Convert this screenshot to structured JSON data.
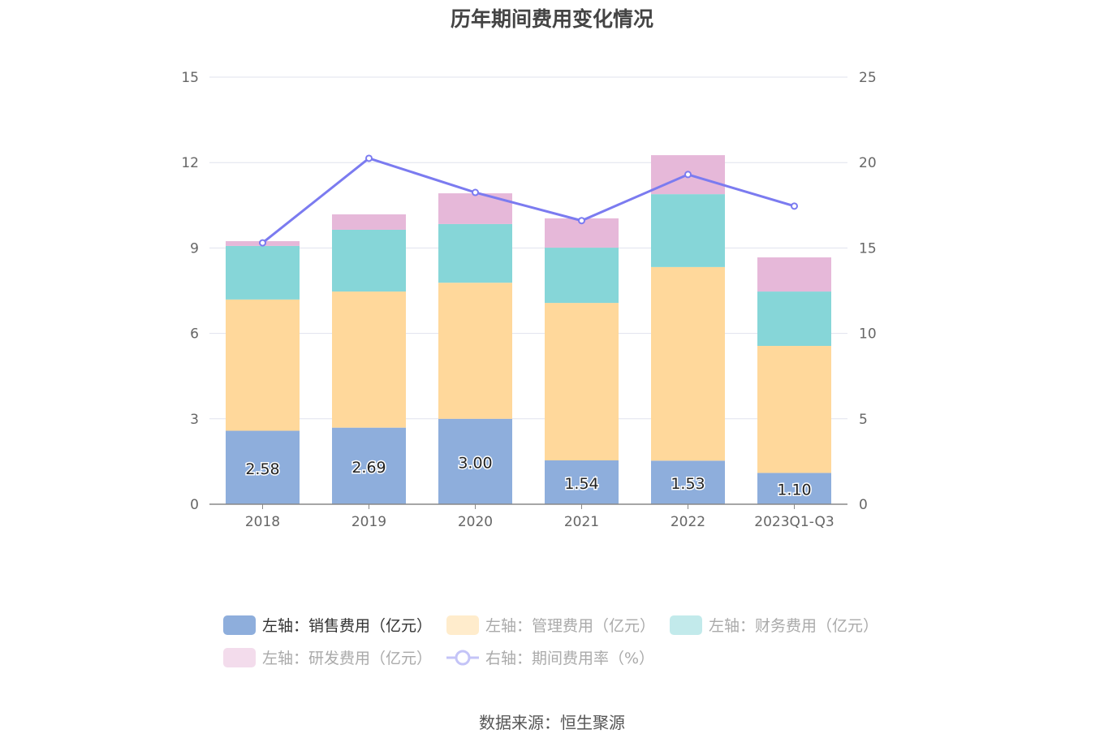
{
  "title": "历年期间费用变化情况",
  "source": "数据来源：恒生聚源",
  "chart_data": {
    "type": "bar",
    "stacked": true,
    "categories": [
      "2018",
      "2019",
      "2020",
      "2021",
      "2022",
      "2023Q1-Q3"
    ],
    "left_axis": {
      "ylim": [
        0,
        15
      ],
      "ticks": [
        0,
        3,
        6,
        9,
        12,
        15
      ]
    },
    "right_axis": {
      "ylim": [
        0,
        25
      ],
      "ticks": [
        0,
        5,
        10,
        15,
        20,
        25
      ]
    },
    "series": [
      {
        "name": "左轴：销售费用（亿元）",
        "axis": "left",
        "color": "#8eaedc",
        "values": [
          2.58,
          2.69,
          3.0,
          1.54,
          1.53,
          1.1
        ],
        "labels": [
          "2.58",
          "2.69",
          "3.00",
          "1.54",
          "1.53",
          "1.10"
        ]
      },
      {
        "name": "左轴：管理费用（亿元）",
        "axis": "left",
        "color": "#ffd89b",
        "values": [
          4.61,
          4.78,
          4.78,
          5.53,
          6.8,
          4.46
        ]
      },
      {
        "name": "左轴：财务费用（亿元）",
        "axis": "left",
        "color": "#86d6d8",
        "values": [
          1.88,
          2.17,
          2.06,
          1.94,
          2.56,
          1.91
        ]
      },
      {
        "name": "左轴：研发费用（亿元）",
        "axis": "left",
        "color": "#e6b8d9",
        "values": [
          0.17,
          0.54,
          1.08,
          1.03,
          1.37,
          1.2
        ]
      },
      {
        "name": "右轴：期间费用率（%）",
        "axis": "right",
        "type": "line",
        "color": "#7b7bf0",
        "values": [
          15.3,
          20.25,
          18.25,
          16.6,
          19.3,
          17.45
        ]
      }
    ],
    "legend_placement": "bottom",
    "legend_faded_colors": [
      "#8eaedc",
      "#ffeccc",
      "#c2eaeb",
      "#f3dcec",
      "#c4c4f7"
    ]
  }
}
